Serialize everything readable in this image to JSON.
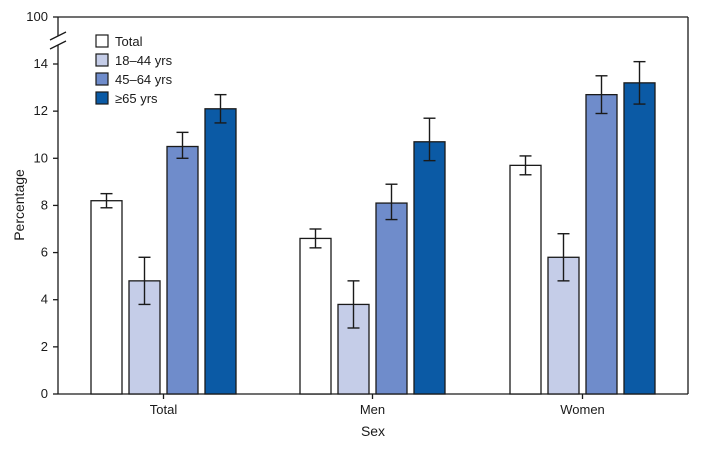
{
  "chart_data": {
    "type": "bar",
    "xlabel": "Sex",
    "ylabel": "Percentage",
    "categories": [
      "Total",
      "Men",
      "Women"
    ],
    "ylim": [
      0,
      14
    ],
    "yticks": [
      0,
      2,
      4,
      6,
      8,
      10,
      12,
      14
    ],
    "axis_break_top_label": "100",
    "series": [
      {
        "name": "Total",
        "color": "#ffffff",
        "values": [
          8.2,
          6.6,
          9.7
        ],
        "ci_low": [
          7.9,
          6.2,
          9.3
        ],
        "ci_high": [
          8.5,
          7.0,
          10.1
        ]
      },
      {
        "name": "18–44 yrs",
        "color": "#c5cde8",
        "values": [
          4.8,
          3.8,
          5.8
        ],
        "ci_low": [
          3.8,
          2.8,
          4.8
        ],
        "ci_high": [
          5.8,
          4.8,
          6.8
        ]
      },
      {
        "name": "45–64 yrs",
        "color": "#6f8ccb",
        "values": [
          10.5,
          8.1,
          12.7
        ],
        "ci_low": [
          10.0,
          7.4,
          11.9
        ],
        "ci_high": [
          11.1,
          8.9,
          13.5
        ]
      },
      {
        "name": "≥65 yrs",
        "color": "#0b5aa5",
        "values": [
          12.1,
          10.7,
          13.2
        ],
        "ci_low": [
          11.5,
          9.9,
          12.3
        ],
        "ci_high": [
          12.7,
          11.7,
          14.1
        ]
      }
    ],
    "legend_position": "top-left",
    "grid": false
  }
}
